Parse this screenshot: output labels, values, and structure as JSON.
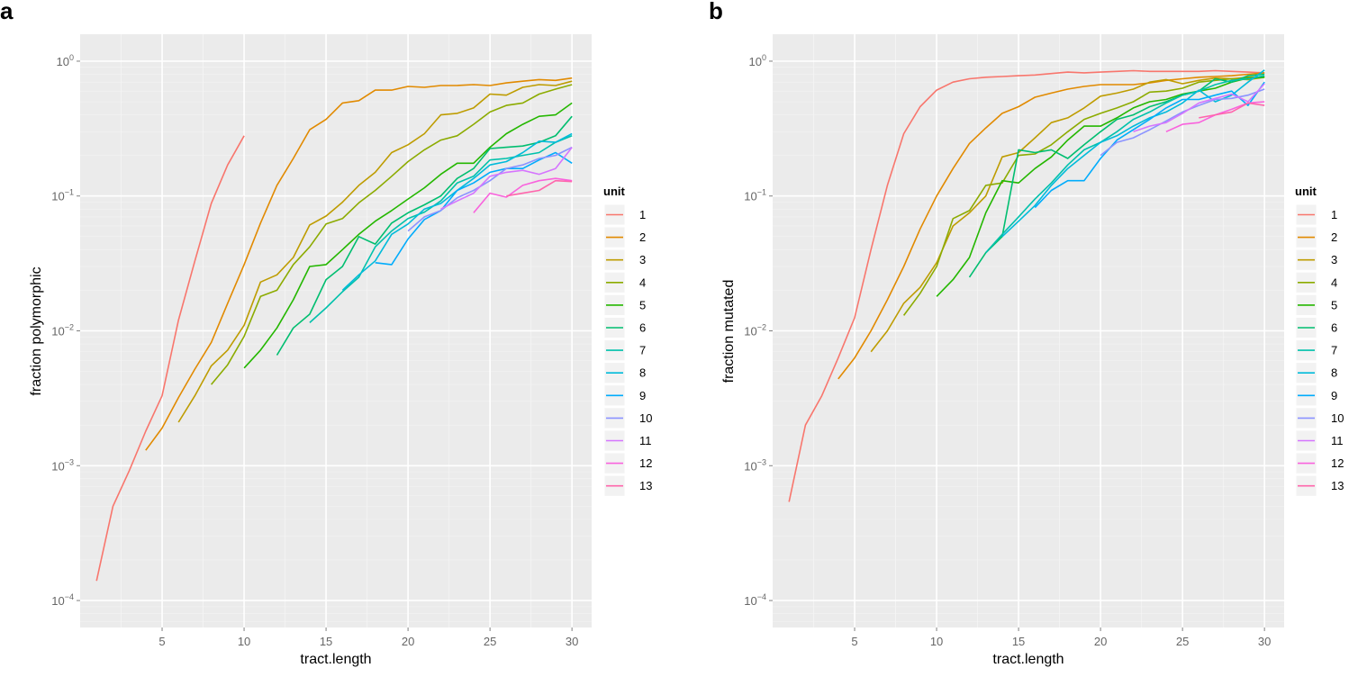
{
  "chart_data": [
    {
      "panel": "a",
      "type": "line",
      "xlabel": "tract.length",
      "ylabel": "fraction polymorphic",
      "xlim": [
        0,
        31.2
      ],
      "ylim_log10": [
        -4.2,
        0.2
      ],
      "x_ticks": [
        5,
        10,
        15,
        20,
        25,
        30
      ],
      "y_ticks": [
        {
          "exp": 0,
          "label": "10",
          "sup": "0"
        },
        {
          "exp": -1,
          "label": "10",
          "sup": "−1"
        },
        {
          "exp": -2,
          "label": "10",
          "sup": "−2"
        },
        {
          "exp": -3,
          "label": "10",
          "sup": "−3"
        },
        {
          "exp": -4,
          "label": "10",
          "sup": "−4"
        }
      ],
      "legend_title": "unit",
      "scale": "log10",
      "series": [
        {
          "name": "1",
          "color": "#F8766D",
          "x": [
            1,
            2,
            3,
            4,
            5,
            6,
            7,
            8,
            9,
            10
          ],
          "y": [
            0.00014,
            0.0005,
            0.00092,
            0.0018,
            0.0033,
            0.012,
            0.033,
            0.088,
            0.17,
            0.28
          ]
        },
        {
          "name": "2",
          "color": "#E18A00",
          "x": [
            4,
            5,
            6,
            7,
            8,
            9,
            10,
            11,
            12,
            13,
            14,
            15,
            16,
            17,
            18,
            19,
            20,
            21,
            22,
            23,
            24,
            25,
            26,
            27,
            28,
            29,
            30
          ],
          "y": [
            0.0013,
            0.0019,
            0.0032,
            0.0052,
            0.0082,
            0.016,
            0.031,
            0.063,
            0.12,
            0.19,
            0.31,
            0.37,
            0.49,
            0.51,
            0.61,
            0.61,
            0.65,
            0.64,
            0.66,
            0.66,
            0.67,
            0.66,
            0.69,
            0.71,
            0.73,
            0.72,
            0.75
          ]
        },
        {
          "name": "3",
          "color": "#BE9C00",
          "x": [
            6,
            7,
            8,
            9,
            10,
            11,
            12,
            13,
            14,
            15,
            16,
            17,
            18,
            19,
            20,
            21,
            22,
            23,
            24,
            25,
            26,
            27,
            28,
            29,
            30
          ],
          "y": [
            0.0021,
            0.0033,
            0.0055,
            0.0072,
            0.011,
            0.023,
            0.026,
            0.035,
            0.061,
            0.071,
            0.09,
            0.12,
            0.15,
            0.21,
            0.24,
            0.29,
            0.4,
            0.41,
            0.45,
            0.57,
            0.56,
            0.64,
            0.67,
            0.66,
            0.71
          ]
        },
        {
          "name": "4",
          "color": "#8CAB00",
          "x": [
            8,
            9,
            10,
            11,
            12,
            13,
            14,
            15,
            16,
            17,
            18,
            19,
            20,
            21,
            22,
            23,
            24,
            25,
            26,
            27,
            28,
            29,
            30
          ],
          "y": [
            0.004,
            0.0056,
            0.0091,
            0.018,
            0.02,
            0.031,
            0.042,
            0.062,
            0.068,
            0.089,
            0.11,
            0.14,
            0.18,
            0.22,
            0.26,
            0.28,
            0.34,
            0.42,
            0.47,
            0.49,
            0.57,
            0.62,
            0.67
          ]
        },
        {
          "name": "5",
          "color": "#24B700",
          "x": [
            10,
            11,
            12,
            13,
            14,
            15,
            16,
            17,
            18,
            19,
            20,
            21,
            22,
            23,
            24,
            25,
            26,
            27,
            28,
            29,
            30
          ],
          "y": [
            0.0053,
            0.0072,
            0.0105,
            0.017,
            0.03,
            0.031,
            0.04,
            0.052,
            0.065,
            0.078,
            0.095,
            0.115,
            0.145,
            0.175,
            0.175,
            0.23,
            0.29,
            0.34,
            0.39,
            0.4,
            0.49
          ]
        },
        {
          "name": "6",
          "color": "#00BE70",
          "x": [
            12,
            13,
            14,
            15,
            16,
            17,
            18,
            19,
            20,
            21,
            22,
            23,
            24,
            25,
            26,
            27,
            28,
            29,
            30
          ],
          "y": [
            0.0066,
            0.0105,
            0.0133,
            0.024,
            0.03,
            0.05,
            0.044,
            0.063,
            0.075,
            0.086,
            0.1,
            0.135,
            0.16,
            0.225,
            0.23,
            0.235,
            0.25,
            0.28,
            0.39
          ]
        },
        {
          "name": "7",
          "color": "#00C1AB",
          "x": [
            14,
            15,
            16,
            17,
            18,
            19,
            20,
            21,
            22,
            23,
            24,
            25,
            26,
            27,
            28,
            29,
            30
          ],
          "y": [
            0.0115,
            0.0148,
            0.0195,
            0.025,
            0.042,
            0.055,
            0.068,
            0.076,
            0.092,
            0.125,
            0.14,
            0.185,
            0.19,
            0.2,
            0.21,
            0.25,
            0.28
          ]
        },
        {
          "name": "8",
          "color": "#00BBDA",
          "x": [
            16,
            17,
            18,
            19,
            20,
            21,
            22,
            23,
            24,
            25,
            26,
            27,
            28,
            29,
            30
          ],
          "y": [
            0.02,
            0.026,
            0.033,
            0.052,
            0.062,
            0.08,
            0.088,
            0.11,
            0.135,
            0.17,
            0.18,
            0.21,
            0.255,
            0.25,
            0.29
          ]
        },
        {
          "name": "9",
          "color": "#00ACFC",
          "x": [
            18,
            19,
            20,
            21,
            22,
            23,
            24,
            25,
            26,
            27,
            28,
            29,
            30
          ],
          "y": [
            0.032,
            0.031,
            0.048,
            0.067,
            0.078,
            0.11,
            0.125,
            0.15,
            0.16,
            0.16,
            0.185,
            0.21,
            0.175
          ]
        },
        {
          "name": "10",
          "color": "#8B93FF",
          "x": [
            20,
            21,
            22,
            23,
            24,
            25,
            26,
            27,
            28,
            29,
            30
          ],
          "y": [
            0.055,
            0.07,
            0.078,
            0.097,
            0.11,
            0.13,
            0.16,
            0.17,
            0.19,
            0.2,
            0.23
          ]
        },
        {
          "name": "11",
          "color": "#D575FE",
          "x": [
            22,
            23,
            24,
            25,
            26,
            27,
            28,
            29,
            30
          ],
          "y": [
            0.08,
            0.092,
            0.105,
            0.14,
            0.15,
            0.155,
            0.145,
            0.16,
            0.23
          ]
        },
        {
          "name": "12",
          "color": "#F962DD",
          "x": [
            24,
            25,
            26,
            27,
            28,
            29,
            30
          ],
          "y": [
            0.075,
            0.105,
            0.098,
            0.12,
            0.13,
            0.135,
            0.13
          ]
        },
        {
          "name": "13",
          "color": "#FF65AC",
          "x": [
            26,
            27,
            28,
            29,
            30
          ],
          "y": [
            0.1,
            0.105,
            0.11,
            0.13,
            0.128
          ]
        }
      ]
    },
    {
      "panel": "b",
      "type": "line",
      "xlabel": "tract.length",
      "ylabel": "fraction mutated",
      "xlim": [
        0,
        31.2
      ],
      "ylim_log10": [
        -4.2,
        0.2
      ],
      "x_ticks": [
        5,
        10,
        15,
        20,
        25,
        30
      ],
      "y_ticks": [
        {
          "exp": 0,
          "label": "10",
          "sup": "0"
        },
        {
          "exp": -1,
          "label": "10",
          "sup": "−1"
        },
        {
          "exp": -2,
          "label": "10",
          "sup": "−2"
        },
        {
          "exp": -3,
          "label": "10",
          "sup": "−3"
        },
        {
          "exp": -4,
          "label": "10",
          "sup": "−4"
        }
      ],
      "legend_title": "unit",
      "scale": "log10",
      "series": [
        {
          "name": "1",
          "color": "#F8766D",
          "x": [
            1,
            2,
            3,
            4,
            5,
            6,
            7,
            8,
            9,
            10,
            11,
            12,
            13,
            14,
            15,
            16,
            17,
            18,
            19,
            20,
            21,
            22,
            23,
            24,
            25,
            26,
            27,
            28,
            29,
            30
          ],
          "y": [
            0.00054,
            0.002,
            0.0033,
            0.0063,
            0.0125,
            0.04,
            0.12,
            0.29,
            0.46,
            0.61,
            0.7,
            0.74,
            0.76,
            0.77,
            0.78,
            0.79,
            0.81,
            0.83,
            0.82,
            0.83,
            0.84,
            0.85,
            0.84,
            0.84,
            0.84,
            0.84,
            0.85,
            0.84,
            0.83,
            0.82
          ]
        },
        {
          "name": "2",
          "color": "#E18A00",
          "x": [
            4,
            5,
            6,
            7,
            8,
            9,
            10,
            11,
            12,
            13,
            14,
            15,
            16,
            17,
            18,
            19,
            20,
            21,
            22,
            23,
            24,
            25,
            26,
            27,
            28,
            29,
            30
          ],
          "y": [
            0.0044,
            0.0063,
            0.01,
            0.017,
            0.03,
            0.057,
            0.1,
            0.16,
            0.245,
            0.32,
            0.41,
            0.46,
            0.54,
            0.58,
            0.62,
            0.65,
            0.67,
            0.67,
            0.67,
            0.69,
            0.72,
            0.74,
            0.76,
            0.77,
            0.78,
            0.8,
            0.82
          ]
        },
        {
          "name": "3",
          "color": "#BE9C00",
          "x": [
            6,
            7,
            8,
            9,
            10,
            11,
            12,
            13,
            14,
            15,
            16,
            17,
            18,
            19,
            20,
            21,
            22,
            23,
            24,
            25,
            26,
            27,
            28,
            29,
            30
          ],
          "y": [
            0.007,
            0.01,
            0.016,
            0.021,
            0.032,
            0.06,
            0.075,
            0.1,
            0.195,
            0.21,
            0.27,
            0.35,
            0.38,
            0.45,
            0.55,
            0.58,
            0.62,
            0.7,
            0.73,
            0.68,
            0.72,
            0.75,
            0.74,
            0.76,
            0.77
          ]
        },
        {
          "name": "4",
          "color": "#8CAB00",
          "x": [
            8,
            9,
            10,
            11,
            12,
            13,
            14,
            15,
            16,
            17,
            18,
            19,
            20,
            21,
            22,
            23,
            24,
            25,
            26,
            27,
            28,
            29,
            30
          ],
          "y": [
            0.013,
            0.019,
            0.03,
            0.068,
            0.078,
            0.12,
            0.125,
            0.2,
            0.205,
            0.24,
            0.3,
            0.37,
            0.41,
            0.45,
            0.5,
            0.59,
            0.6,
            0.63,
            0.7,
            0.72,
            0.74,
            0.73,
            0.76
          ]
        },
        {
          "name": "5",
          "color": "#24B700",
          "x": [
            10,
            11,
            12,
            13,
            14,
            15,
            16,
            17,
            18,
            19,
            20,
            21,
            22,
            23,
            24,
            25,
            26,
            27,
            28,
            29,
            30
          ],
          "y": [
            0.018,
            0.024,
            0.035,
            0.075,
            0.13,
            0.125,
            0.16,
            0.195,
            0.26,
            0.33,
            0.33,
            0.38,
            0.45,
            0.5,
            0.52,
            0.57,
            0.6,
            0.63,
            0.7,
            0.75,
            0.76
          ]
        },
        {
          "name": "6",
          "color": "#00BE70",
          "x": [
            12,
            13,
            14,
            15,
            16,
            17,
            18,
            19,
            20,
            21,
            22,
            23,
            24,
            25,
            26,
            27,
            28,
            29,
            30
          ],
          "y": [
            0.025,
            0.038,
            0.05,
            0.22,
            0.21,
            0.22,
            0.19,
            0.24,
            0.3,
            0.37,
            0.4,
            0.46,
            0.5,
            0.56,
            0.6,
            0.74,
            0.7,
            0.78,
            0.8
          ]
        },
        {
          "name": "7",
          "color": "#00C1AB",
          "x": [
            13,
            14,
            15,
            16,
            17,
            18,
            19,
            20,
            21,
            22,
            23,
            24,
            25,
            26,
            27,
            28,
            29,
            30
          ],
          "y": [
            0.038,
            0.052,
            0.07,
            0.095,
            0.125,
            0.17,
            0.22,
            0.25,
            0.3,
            0.37,
            0.42,
            0.49,
            0.56,
            0.6,
            0.67,
            0.72,
            0.74,
            0.78
          ]
        },
        {
          "name": "8",
          "color": "#00BBDA",
          "x": [
            14,
            15,
            16,
            17,
            18,
            19,
            20,
            21,
            22,
            23,
            24,
            25,
            26,
            27,
            28,
            29,
            30
          ],
          "y": [
            0.05,
            0.065,
            0.085,
            0.12,
            0.16,
            0.2,
            0.25,
            0.28,
            0.33,
            0.38,
            0.42,
            0.49,
            0.61,
            0.5,
            0.56,
            0.7,
            0.86
          ]
        },
        {
          "name": "9",
          "color": "#00ACFC",
          "x": [
            16,
            17,
            18,
            19,
            20,
            21,
            22,
            23,
            24,
            25,
            26,
            27,
            28,
            29,
            30
          ],
          "y": [
            0.082,
            0.11,
            0.13,
            0.13,
            0.19,
            0.26,
            0.31,
            0.37,
            0.45,
            0.52,
            0.52,
            0.56,
            0.6,
            0.47,
            0.7
          ]
        },
        {
          "name": "10",
          "color": "#8B93FF",
          "x": [
            20,
            21,
            22,
            23,
            24,
            25,
            26,
            27,
            28,
            29,
            30
          ],
          "y": [
            0.2,
            0.25,
            0.27,
            0.31,
            0.36,
            0.42,
            0.47,
            0.52,
            0.53,
            0.56,
            0.62
          ]
        },
        {
          "name": "11",
          "color": "#D575FE",
          "x": [
            22,
            23,
            24,
            25,
            26,
            27,
            28,
            29,
            30
          ],
          "y": [
            0.3,
            0.33,
            0.35,
            0.41,
            0.49,
            0.53,
            0.57,
            0.5,
            0.68
          ]
        },
        {
          "name": "12",
          "color": "#F962DD",
          "x": [
            24,
            25,
            26,
            27,
            28,
            29,
            30
          ],
          "y": [
            0.3,
            0.34,
            0.35,
            0.4,
            0.44,
            0.49,
            0.5
          ]
        },
        {
          "name": "13",
          "color": "#FF65AC",
          "x": [
            26,
            27,
            28,
            29,
            30
          ],
          "y": [
            0.38,
            0.4,
            0.42,
            0.49,
            0.47
          ]
        }
      ]
    }
  ]
}
